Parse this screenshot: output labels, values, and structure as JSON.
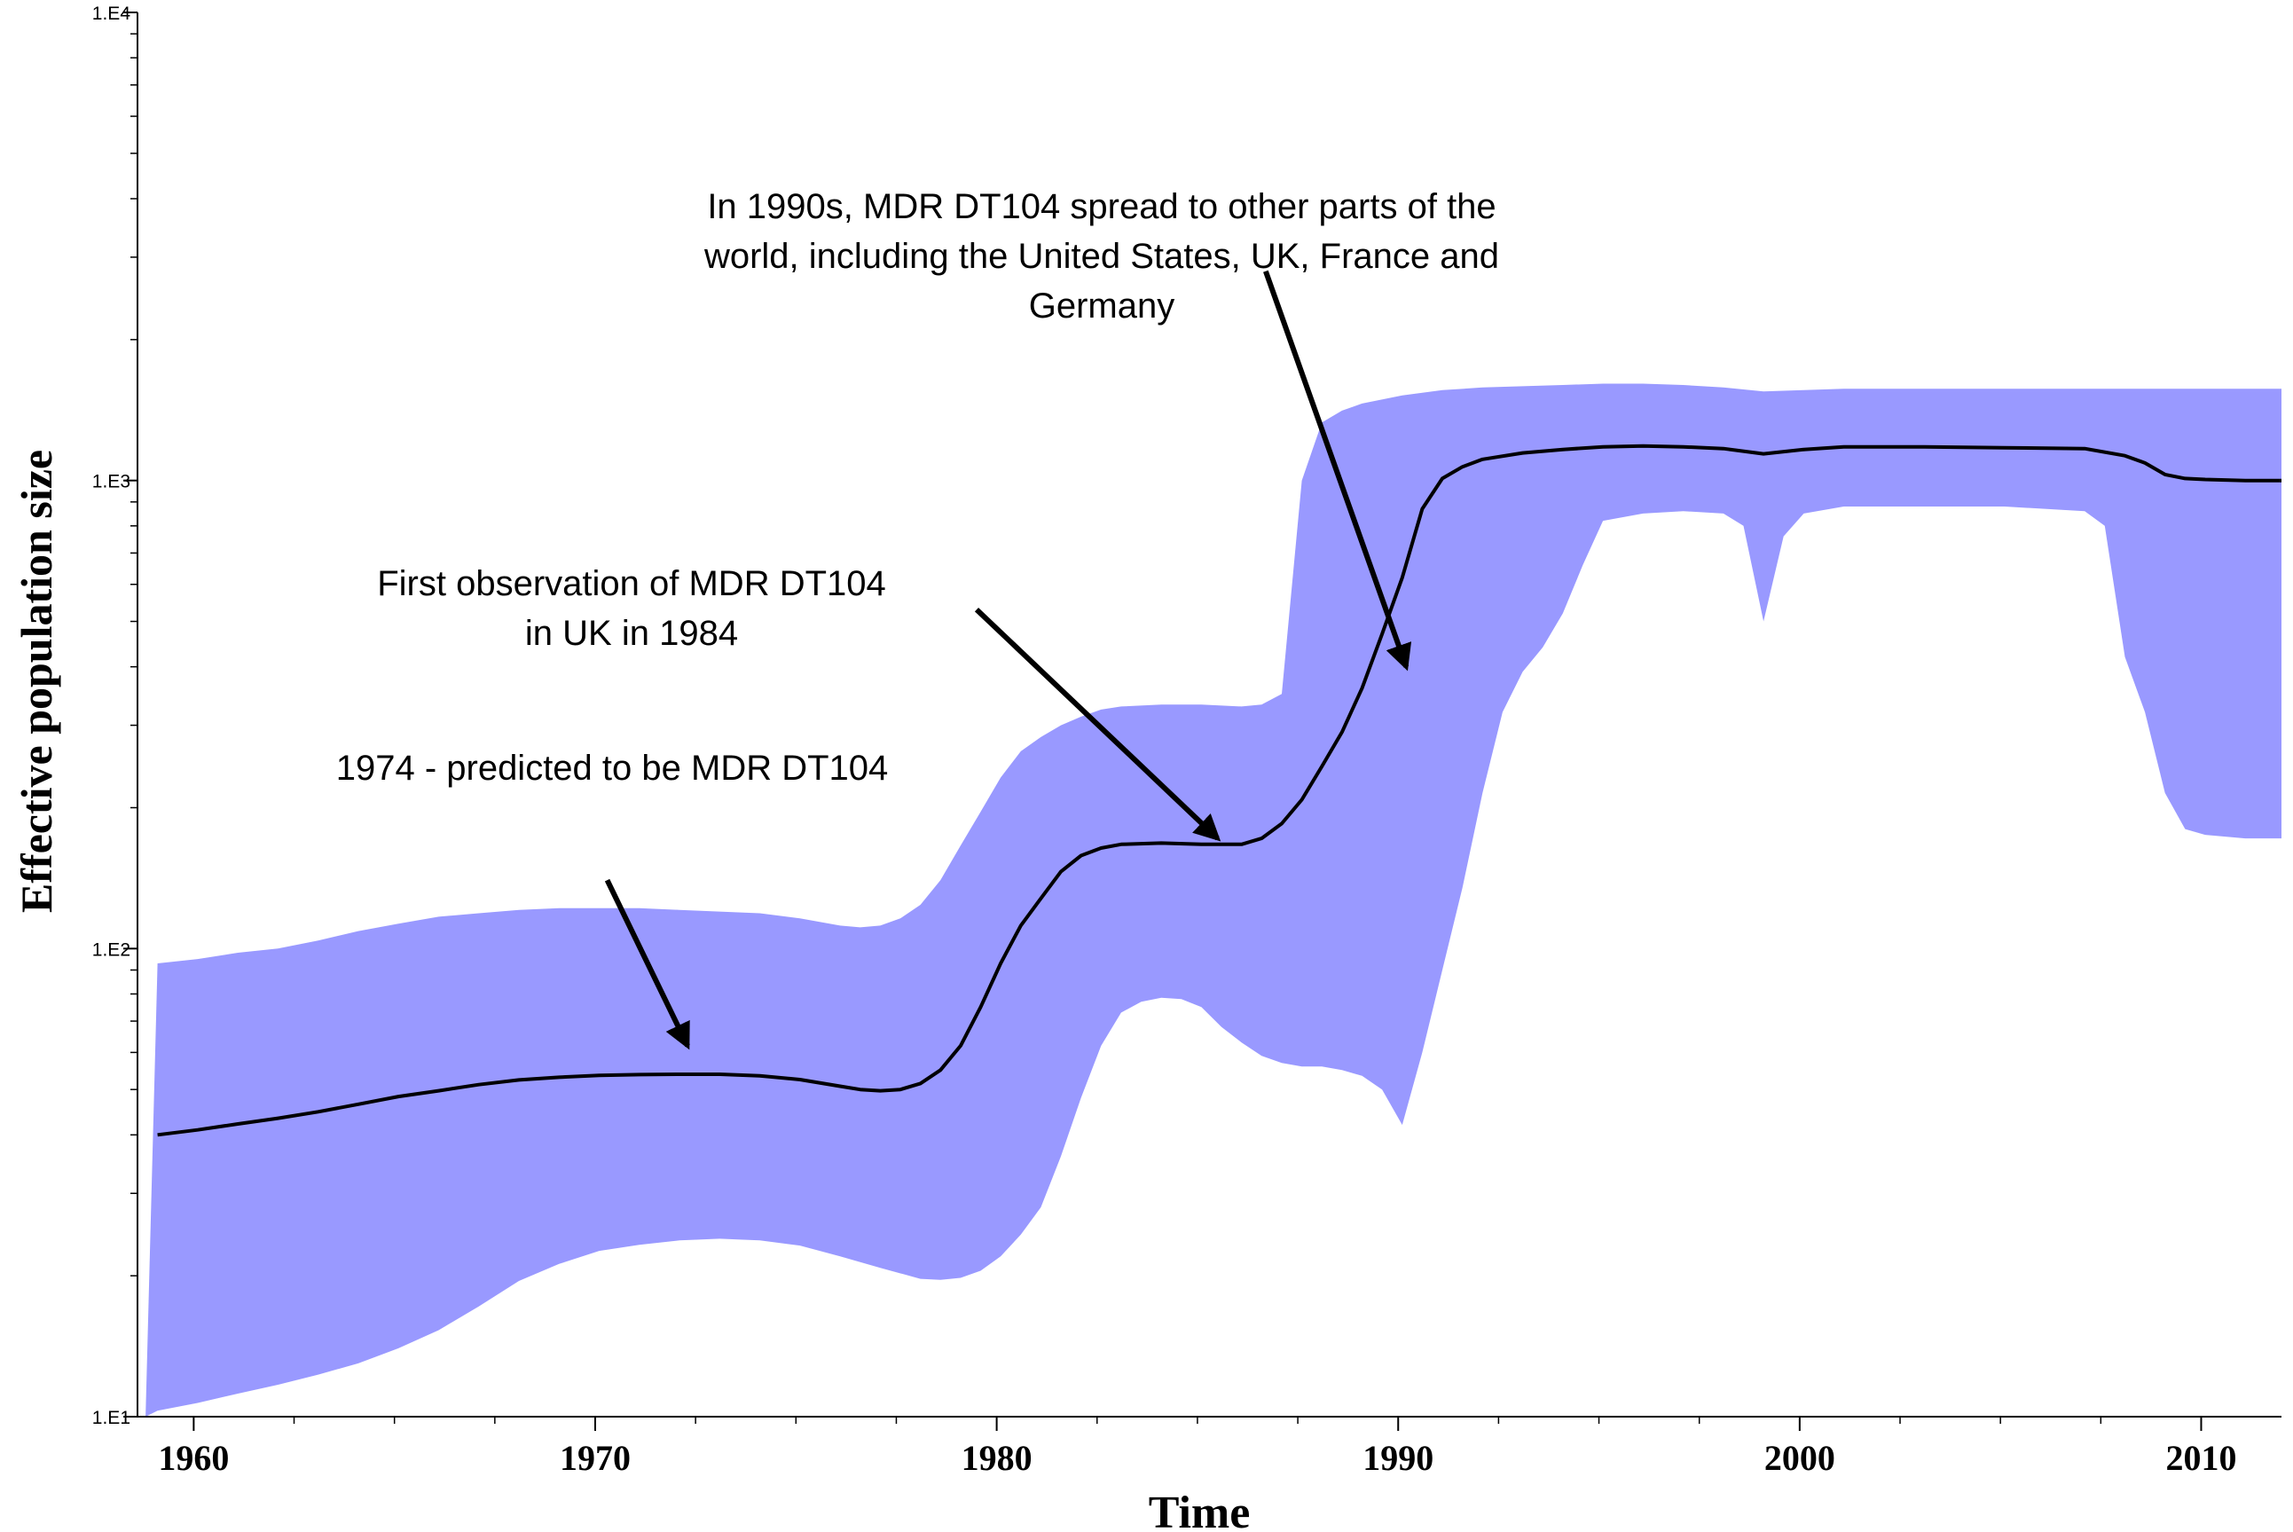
{
  "chart_data": {
    "type": "area",
    "xlabel": "Time",
    "ylabel": "Effective population size",
    "xlim": [
      1958.6,
      2012.0
    ],
    "ylim": [
      10,
      10000
    ],
    "y_scale": "log",
    "grid": false,
    "x_ticks": [
      {
        "value": 1960,
        "label": "1960"
      },
      {
        "value": 1970,
        "label": "1970"
      },
      {
        "value": 1980,
        "label": "1980"
      },
      {
        "value": 1990,
        "label": "1990"
      },
      {
        "value": 2000,
        "label": "2000"
      },
      {
        "value": 2010,
        "label": "2010"
      }
    ],
    "y_ticks": [
      {
        "value": 10,
        "label": "1.E1"
      },
      {
        "value": 100,
        "label": "1.E2"
      },
      {
        "value": 1000,
        "label": "1.E3"
      },
      {
        "value": 10000,
        "label": "1.E4"
      }
    ],
    "band_color": "#9999ff",
    "line_color": "#000000",
    "upper": [
      [
        1959.1,
        93
      ],
      [
        1960.1,
        95
      ],
      [
        1961.1,
        98
      ],
      [
        1962.1,
        100
      ],
      [
        1963.1,
        104
      ],
      [
        1964.1,
        109
      ],
      [
        1965.1,
        113
      ],
      [
        1966.1,
        117
      ],
      [
        1967.1,
        119
      ],
      [
        1968.1,
        121
      ],
      [
        1969.1,
        122
      ],
      [
        1970.1,
        122
      ],
      [
        1971.1,
        122
      ],
      [
        1972.1,
        121
      ],
      [
        1973.1,
        120
      ],
      [
        1974.1,
        119
      ],
      [
        1975.1,
        116
      ],
      [
        1976.1,
        112
      ],
      [
        1976.6,
        111
      ],
      [
        1977.1,
        112
      ],
      [
        1977.6,
        116
      ],
      [
        1978.1,
        124
      ],
      [
        1978.6,
        140
      ],
      [
        1979.1,
        166
      ],
      [
        1979.6,
        196
      ],
      [
        1980.1,
        232
      ],
      [
        1980.6,
        264
      ],
      [
        1981.1,
        283
      ],
      [
        1981.6,
        300
      ],
      [
        1982.1,
        313
      ],
      [
        1982.6,
        324
      ],
      [
        1983.1,
        329
      ],
      [
        1984.1,
        332
      ],
      [
        1985.1,
        332
      ],
      [
        1986.1,
        329
      ],
      [
        1986.6,
        332
      ],
      [
        1987.1,
        350
      ],
      [
        1987.6,
        1000
      ],
      [
        1988.1,
        1330
      ],
      [
        1988.6,
        1410
      ],
      [
        1989.1,
        1460
      ],
      [
        1990.1,
        1520
      ],
      [
        1991.1,
        1560
      ],
      [
        1992.1,
        1580
      ],
      [
        1993.1,
        1590
      ],
      [
        1994.1,
        1600
      ],
      [
        1995.1,
        1610
      ],
      [
        1996.1,
        1610
      ],
      [
        1997.1,
        1600
      ],
      [
        1998.1,
        1580
      ],
      [
        1999.1,
        1550
      ],
      [
        2000.1,
        1560
      ],
      [
        2001.1,
        1570
      ],
      [
        2003.1,
        1570
      ],
      [
        2005.1,
        1570
      ],
      [
        2008.1,
        1570
      ],
      [
        2010.1,
        1570
      ],
      [
        2012.0,
        1570
      ]
    ],
    "lower": [
      [
        1958.8,
        10
      ],
      [
        1959.1,
        10.3
      ],
      [
        1960.1,
        10.7
      ],
      [
        1961.1,
        11.2
      ],
      [
        1962.1,
        11.7
      ],
      [
        1963.1,
        12.3
      ],
      [
        1964.1,
        13.0
      ],
      [
        1965.1,
        14.0
      ],
      [
        1966.1,
        15.3
      ],
      [
        1967.1,
        17.2
      ],
      [
        1968.1,
        19.5
      ],
      [
        1969.1,
        21.2
      ],
      [
        1970.1,
        22.6
      ],
      [
        1971.1,
        23.3
      ],
      [
        1972.1,
        23.8
      ],
      [
        1973.1,
        24.0
      ],
      [
        1974.1,
        23.8
      ],
      [
        1975.1,
        23.2
      ],
      [
        1976.1,
        22.0
      ],
      [
        1977.1,
        20.8
      ],
      [
        1978.1,
        19.7
      ],
      [
        1978.6,
        19.6
      ],
      [
        1979.1,
        19.8
      ],
      [
        1979.6,
        20.5
      ],
      [
        1980.1,
        22.0
      ],
      [
        1980.6,
        24.5
      ],
      [
        1981.1,
        28.0
      ],
      [
        1981.6,
        36.0
      ],
      [
        1982.1,
        48.0
      ],
      [
        1982.6,
        62.0
      ],
      [
        1983.1,
        73.0
      ],
      [
        1983.6,
        77.0
      ],
      [
        1984.1,
        78.5
      ],
      [
        1984.6,
        78.0
      ],
      [
        1985.1,
        75.0
      ],
      [
        1985.6,
        68.0
      ],
      [
        1986.1,
        63.0
      ],
      [
        1986.6,
        59.0
      ],
      [
        1987.1,
        57.0
      ],
      [
        1987.6,
        56.0
      ],
      [
        1988.1,
        56.0
      ],
      [
        1988.6,
        55.0
      ],
      [
        1989.1,
        53.5
      ],
      [
        1989.6,
        50.0
      ],
      [
        1990.1,
        42.0
      ],
      [
        1990.6,
        60.0
      ],
      [
        1991.1,
        90.0
      ],
      [
        1991.6,
        135.0
      ],
      [
        1992.1,
        215.0
      ],
      [
        1992.6,
        320.0
      ],
      [
        1993.1,
        390.0
      ],
      [
        1993.6,
        440.0
      ],
      [
        1994.1,
        520.0
      ],
      [
        1994.6,
        660.0
      ],
      [
        1995.1,
        820.0
      ],
      [
        1996.1,
        850.0
      ],
      [
        1997.1,
        860.0
      ],
      [
        1998.1,
        850.0
      ],
      [
        1998.6,
        800.0
      ],
      [
        1999.1,
        500.0
      ],
      [
        1999.6,
        760.0
      ],
      [
        2000.1,
        850.0
      ],
      [
        2001.1,
        880.0
      ],
      [
        2003.1,
        880.0
      ],
      [
        2005.1,
        880.0
      ],
      [
        2007.1,
        860.0
      ],
      [
        2007.6,
        800.0
      ],
      [
        2008.1,
        420.0
      ],
      [
        2008.6,
        320.0
      ],
      [
        2009.1,
        215.0
      ],
      [
        2009.6,
        180.0
      ],
      [
        2010.1,
        175.0
      ],
      [
        2011.1,
        172.0
      ],
      [
        2012.0,
        172.0
      ]
    ],
    "median": [
      [
        1959.1,
        40.0
      ],
      [
        1960.1,
        41.0
      ],
      [
        1961.1,
        42.2
      ],
      [
        1962.1,
        43.4
      ],
      [
        1963.1,
        44.8
      ],
      [
        1964.1,
        46.5
      ],
      [
        1965.1,
        48.3
      ],
      [
        1966.1,
        49.7
      ],
      [
        1967.1,
        51.2
      ],
      [
        1968.1,
        52.4
      ],
      [
        1969.1,
        53.1
      ],
      [
        1970.1,
        53.6
      ],
      [
        1971.1,
        53.8
      ],
      [
        1972.1,
        53.9
      ],
      [
        1973.1,
        53.9
      ],
      [
        1974.1,
        53.5
      ],
      [
        1975.1,
        52.5
      ],
      [
        1976.1,
        50.8
      ],
      [
        1976.6,
        50.0
      ],
      [
        1977.1,
        49.7
      ],
      [
        1977.6,
        50.0
      ],
      [
        1978.1,
        51.5
      ],
      [
        1978.6,
        55.0
      ],
      [
        1979.1,
        62.0
      ],
      [
        1979.6,
        75.0
      ],
      [
        1980.1,
        93.0
      ],
      [
        1980.6,
        112.0
      ],
      [
        1981.1,
        128.0
      ],
      [
        1981.6,
        146.0
      ],
      [
        1982.1,
        158.0
      ],
      [
        1982.6,
        164.0
      ],
      [
        1983.1,
        167.0
      ],
      [
        1984.1,
        168.0
      ],
      [
        1985.1,
        167.0
      ],
      [
        1986.1,
        167.0
      ],
      [
        1986.6,
        172.0
      ],
      [
        1987.1,
        185.0
      ],
      [
        1987.6,
        208.0
      ],
      [
        1988.1,
        245.0
      ],
      [
        1988.6,
        290.0
      ],
      [
        1989.1,
        360.0
      ],
      [
        1989.6,
        470.0
      ],
      [
        1990.1,
        620.0
      ],
      [
        1990.6,
        870.0
      ],
      [
        1991.1,
        1010.0
      ],
      [
        1991.6,
        1070.0
      ],
      [
        1992.1,
        1110.0
      ],
      [
        1993.1,
        1145.0
      ],
      [
        1994.1,
        1165.0
      ],
      [
        1995.1,
        1180.0
      ],
      [
        1996.1,
        1185.0
      ],
      [
        1997.1,
        1180.0
      ],
      [
        1998.1,
        1170.0
      ],
      [
        1999.1,
        1140.0
      ],
      [
        2000.1,
        1165.0
      ],
      [
        2001.1,
        1180.0
      ],
      [
        2003.1,
        1180.0
      ],
      [
        2005.1,
        1175.0
      ],
      [
        2007.1,
        1170.0
      ],
      [
        2008.1,
        1130.0
      ],
      [
        2008.6,
        1090.0
      ],
      [
        2009.1,
        1030.0
      ],
      [
        2009.6,
        1010.0
      ],
      [
        2010.1,
        1005.0
      ],
      [
        2011.1,
        1000.0
      ],
      [
        2012.0,
        1000.0
      ]
    ],
    "annotations": [
      {
        "lines": [
          "In 1990s, MDR DT104 spread to other parts of the",
          "world, including the United States, UK, France and",
          "Germany"
        ],
        "arrow_from": [
          1986.7,
          2800
        ],
        "arrow_to": [
          1990.2,
          400
        ]
      },
      {
        "lines": [
          "First observation of MDR DT104",
          "in UK in 1984"
        ],
        "arrow_from": [
          1979.5,
          530
        ],
        "arrow_to": [
          1985.5,
          172
        ]
      },
      {
        "lines": [
          "1974 - predicted to be MDR DT104"
        ],
        "arrow_from": [
          1970.3,
          140
        ],
        "arrow_to": [
          1972.3,
          62
        ]
      }
    ]
  }
}
